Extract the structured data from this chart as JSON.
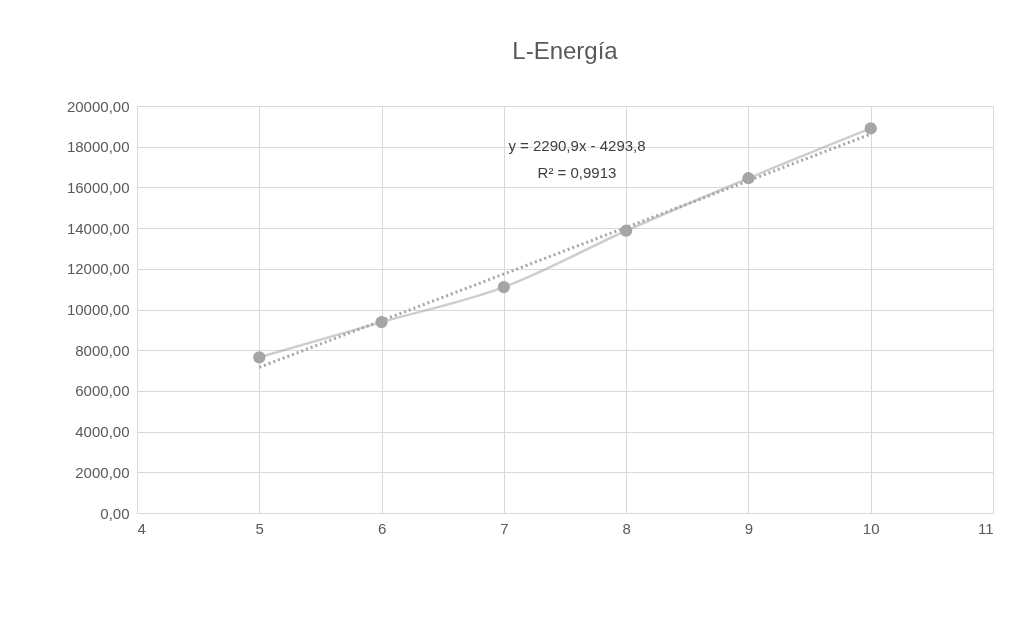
{
  "chart_data": {
    "type": "line",
    "title": "L-Energía",
    "x": [
      5,
      6,
      7,
      8,
      9,
      10
    ],
    "series": [
      {
        "color": "#a5a5a5",
        "values": [
          7650,
          9380,
          11100,
          13870,
          16450,
          18900
        ],
        "marker": "circle",
        "line_style": "solid"
      },
      {
        "type": "line",
        "color": "#a5a5a5",
        "x": [
          5,
          10
        ],
        "values": [
          7160,
          18620
        ],
        "marker": "none",
        "line_style": "dotted"
      }
    ],
    "annotations": [
      "y = 2290,9x - 4293,8",
      "R² = 0,9913"
    ],
    "xlim": [
      4,
      11
    ],
    "xticks": [
      4,
      5,
      6,
      7,
      8,
      9,
      10,
      11
    ],
    "ylim": [
      0,
      20000
    ],
    "yticks": [
      {
        "value": 0,
        "label": "0,00"
      },
      {
        "value": 2000,
        "label": "2000,00"
      },
      {
        "value": 4000,
        "label": "4000,00"
      },
      {
        "value": 6000,
        "label": "6000,00"
      },
      {
        "value": 8000,
        "label": "8000,00"
      },
      {
        "value": 10000,
        "label": "10000,00"
      },
      {
        "value": 12000,
        "label": "12000,00"
      },
      {
        "value": 14000,
        "label": "14000,00"
      },
      {
        "value": 16000,
        "label": "16000,00"
      },
      {
        "value": 18000,
        "label": "18000,00"
      },
      {
        "value": 20000,
        "label": "20000,00"
      }
    ],
    "grid": true
  }
}
